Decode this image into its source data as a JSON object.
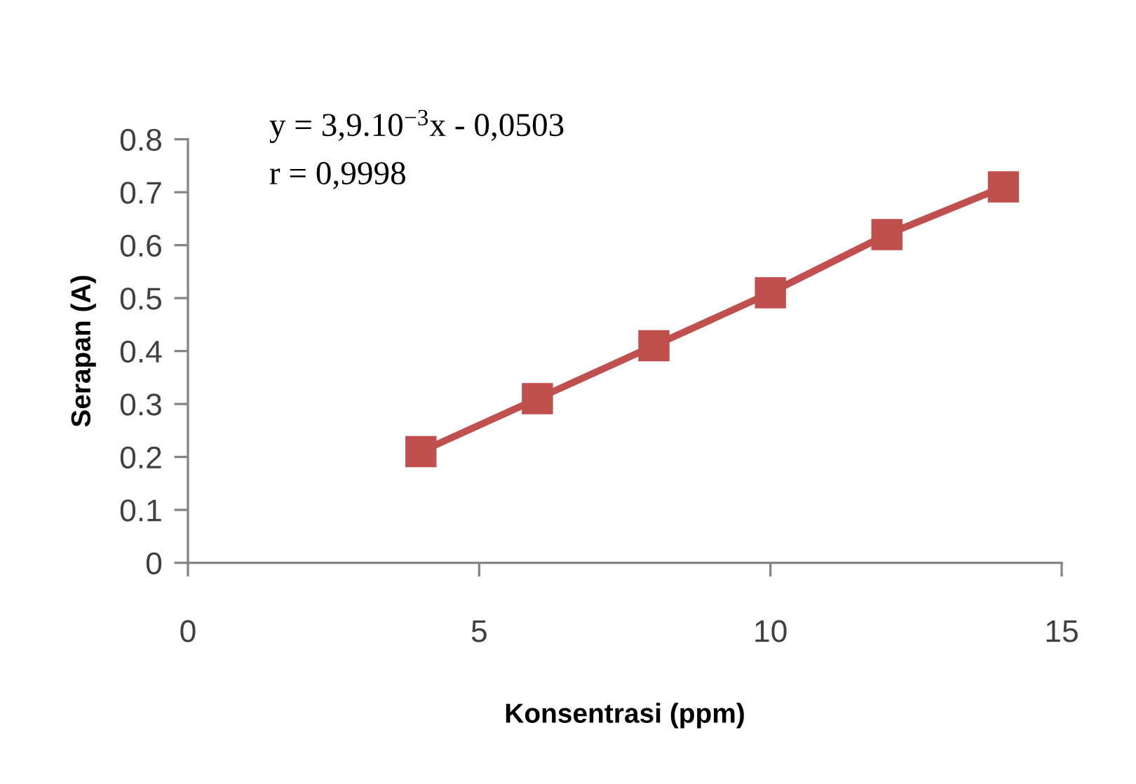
{
  "chart_data": {
    "type": "line",
    "xlabel": "Konsentrasi (ppm)",
    "ylabel": "Serapan (A)",
    "annotations": [
      "y = 3,9.10$^{−3}$x - 0,0503",
      "r = 0,9998"
    ],
    "x": [
      4,
      6,
      8,
      10,
      12,
      14
    ],
    "series": [
      {
        "color": "#c0504d",
        "values": [
          0.21,
          0.31,
          0.41,
          0.51,
          0.62,
          0.71
        ]
      }
    ],
    "xlim": [
      0,
      15
    ],
    "xticks": [
      0,
      5,
      10,
      15
    ],
    "ylim": [
      0,
      0.8
    ],
    "yticks": [
      0,
      0.1,
      0.2,
      0.3,
      0.4,
      0.5,
      0.6,
      0.7,
      0.8
    ],
    "grid": false,
    "marker": "square",
    "line_style": "solid"
  }
}
